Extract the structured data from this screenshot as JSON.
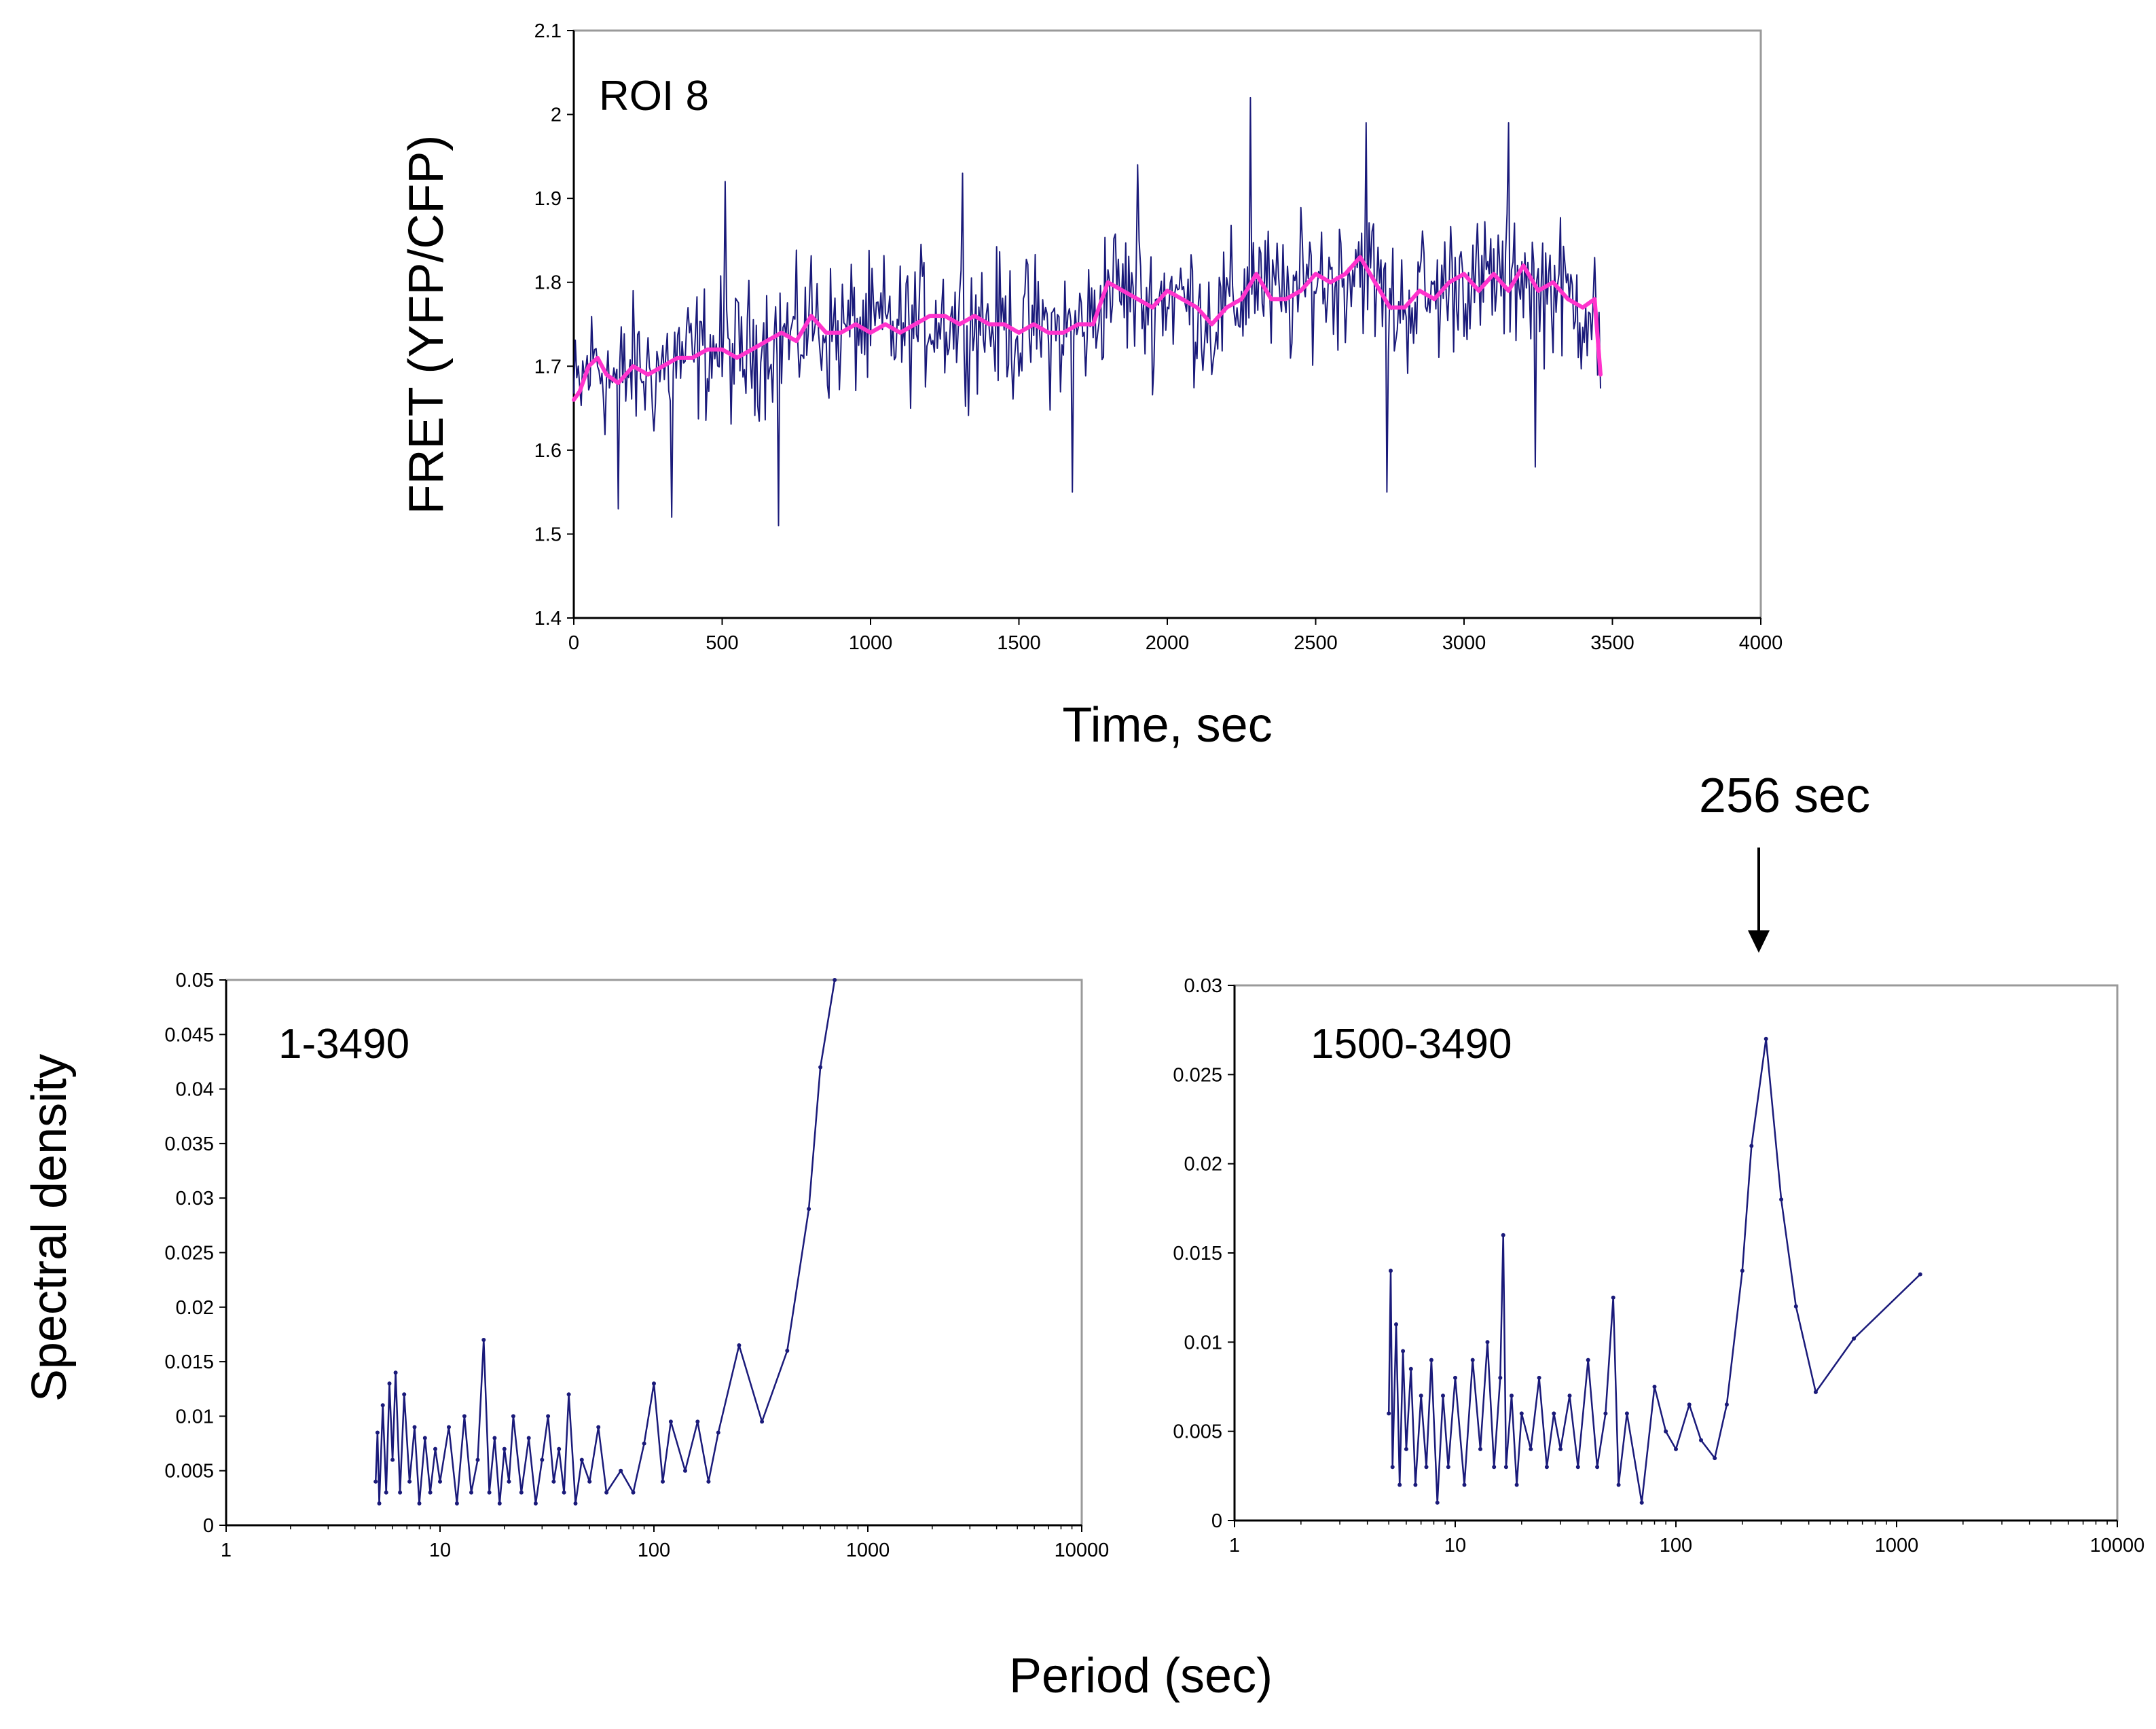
{
  "figure": {
    "shared_ylabel_spectra": "Spectral density",
    "shared_xlabel_spectra": "Period (sec)",
    "arrow_annotation": "256 sec"
  },
  "chart_data": [
    {
      "id": "fret",
      "type": "line",
      "panel_label": "ROI 8",
      "xlabel": "Time, sec",
      "ylabel": "FRET (YFP/CFP)",
      "xlim": [
        0,
        4000
      ],
      "ylim": [
        1.4,
        2.1
      ],
      "xticks": [
        0,
        500,
        1000,
        1500,
        2000,
        2500,
        3000,
        3500,
        4000
      ],
      "xtick_labels": [
        "0",
        "500",
        "1000",
        "1500",
        "2000",
        "2500",
        "3000",
        "3500",
        "4000"
      ],
      "yticks": [
        1.4,
        1.5,
        1.6,
        1.7,
        1.8,
        1.9,
        2.0,
        2.1
      ],
      "ytick_labels": [
        "1.4",
        "1.5",
        "1.6",
        "1.7",
        "1.8",
        "1.9",
        "2",
        "2.1"
      ],
      "grid": false,
      "colors": {
        "raw": "#1a1a7a",
        "smooth": "#ff33cc",
        "axis": "#000000",
        "frame": "#9a9a9a"
      },
      "series": [
        {
          "name": "raw (5 s samples)",
          "sample_interval": 5,
          "x_start": 0,
          "x_end": 3460,
          "noise_amplitude": 0.055,
          "spikes": [
            [
              150,
              1.53
            ],
            [
              330,
              1.52
            ],
            [
              510,
              1.92
            ],
            [
              690,
              1.51
            ],
            [
              1310,
              1.93
            ],
            [
              1680,
              1.55
            ],
            [
              1900,
              1.94
            ],
            [
              2280,
              2.02
            ],
            [
              2670,
              1.99
            ],
            [
              2740,
              1.55
            ],
            [
              3150,
              1.99
            ],
            [
              3240,
              1.58
            ]
          ]
        },
        {
          "name": "smoothed",
          "x": [
            0,
            20,
            50,
            80,
            110,
            150,
            200,
            250,
            300,
            350,
            400,
            450,
            500,
            550,
            600,
            650,
            700,
            750,
            800,
            850,
            900,
            950,
            1000,
            1050,
            1100,
            1150,
            1200,
            1250,
            1300,
            1350,
            1400,
            1450,
            1500,
            1550,
            1600,
            1650,
            1700,
            1750,
            1800,
            1850,
            1900,
            1950,
            2000,
            2050,
            2100,
            2150,
            2200,
            2250,
            2300,
            2350,
            2400,
            2450,
            2500,
            2550,
            2600,
            2650,
            2700,
            2750,
            2800,
            2850,
            2900,
            2950,
            3000,
            3050,
            3100,
            3150,
            3200,
            3250,
            3300,
            3350,
            3400,
            3440,
            3460
          ],
          "values": [
            1.66,
            1.67,
            1.7,
            1.71,
            1.69,
            1.68,
            1.7,
            1.69,
            1.7,
            1.71,
            1.71,
            1.72,
            1.72,
            1.71,
            1.72,
            1.73,
            1.74,
            1.73,
            1.76,
            1.74,
            1.74,
            1.75,
            1.74,
            1.75,
            1.74,
            1.75,
            1.76,
            1.76,
            1.75,
            1.76,
            1.75,
            1.75,
            1.74,
            1.75,
            1.74,
            1.74,
            1.75,
            1.75,
            1.8,
            1.79,
            1.78,
            1.77,
            1.79,
            1.78,
            1.77,
            1.75,
            1.77,
            1.78,
            1.81,
            1.78,
            1.78,
            1.79,
            1.81,
            1.8,
            1.81,
            1.83,
            1.8,
            1.77,
            1.77,
            1.79,
            1.78,
            1.8,
            1.81,
            1.79,
            1.81,
            1.79,
            1.82,
            1.79,
            1.8,
            1.78,
            1.77,
            1.78,
            1.69
          ]
        }
      ]
    },
    {
      "id": "spec1",
      "type": "line",
      "panel_label": "1-3490",
      "xscale": "log",
      "xlim": [
        1,
        10000
      ],
      "ylim": [
        0,
        0.05
      ],
      "xticks": [
        1,
        10,
        100,
        1000,
        10000
      ],
      "xtick_labels": [
        "1",
        "10",
        "100",
        "1000",
        "10000"
      ],
      "yticks": [
        0,
        0.005,
        0.01,
        0.015,
        0.02,
        0.025,
        0.03,
        0.035,
        0.04,
        0.045,
        0.05
      ],
      "ytick_labels": [
        "0",
        "0.005",
        "0.01",
        "0.015",
        "0.02",
        "0.025",
        "0.03",
        "0.035",
        "0.04",
        "0.045",
        "0.05"
      ],
      "grid": false,
      "colors": {
        "line": "#1a1a7a",
        "axis": "#000000",
        "frame": "#9a9a9a"
      },
      "series": [
        {
          "name": "spectrum",
          "x": [
            5,
            5.1,
            5.2,
            5.4,
            5.6,
            5.8,
            6.0,
            6.2,
            6.5,
            6.8,
            7.2,
            7.6,
            8.0,
            8.5,
            9.0,
            9.5,
            10,
            11,
            12,
            13,
            14,
            15,
            16,
            17,
            18,
            19,
            20,
            21,
            22,
            24,
            26,
            28,
            30,
            32,
            34,
            36,
            38,
            40,
            43,
            46,
            50,
            55,
            60,
            70,
            80,
            90,
            100,
            110,
            120,
            140,
            160,
            180,
            200,
            250,
            320,
            420,
            530,
            600,
            700
          ],
          "values": [
            0.004,
            0.0085,
            0.002,
            0.011,
            0.003,
            0.013,
            0.006,
            0.014,
            0.003,
            0.012,
            0.004,
            0.009,
            0.002,
            0.008,
            0.003,
            0.007,
            0.004,
            0.009,
            0.002,
            0.01,
            0.003,
            0.006,
            0.017,
            0.003,
            0.008,
            0.002,
            0.007,
            0.004,
            0.01,
            0.003,
            0.008,
            0.002,
            0.006,
            0.01,
            0.004,
            0.007,
            0.003,
            0.012,
            0.002,
            0.006,
            0.004,
            0.009,
            0.003,
            0.005,
            0.003,
            0.0075,
            0.013,
            0.004,
            0.0095,
            0.005,
            0.0095,
            0.004,
            0.0085,
            0.0165,
            0.0095,
            0.016,
            0.029,
            0.042,
            0.05
          ]
        }
      ]
    },
    {
      "id": "spec2",
      "type": "line",
      "panel_label": "1500-3490",
      "xscale": "log",
      "xlim": [
        1,
        10000
      ],
      "ylim": [
        0,
        0.03
      ],
      "xticks": [
        1,
        10,
        100,
        1000,
        10000
      ],
      "xtick_labels": [
        "1",
        "10",
        "100",
        "1000",
        "10000"
      ],
      "yticks": [
        0,
        0.005,
        0.01,
        0.015,
        0.02,
        0.025,
        0.03
      ],
      "ytick_labels": [
        "0",
        "0.005",
        "0.01",
        "0.015",
        "0.02",
        "0.025",
        "0.03"
      ],
      "grid": false,
      "colors": {
        "line": "#1a1a7a",
        "axis": "#000000",
        "frame": "#9a9a9a"
      },
      "series": [
        {
          "name": "spectrum",
          "x": [
            5,
            5.1,
            5.2,
            5.4,
            5.6,
            5.8,
            6.0,
            6.3,
            6.6,
            7.0,
            7.4,
            7.8,
            8.3,
            8.8,
            9.3,
            10,
            11,
            12,
            13,
            14,
            15,
            16,
            16.5,
            17,
            18,
            19,
            20,
            22,
            24,
            26,
            28,
            30,
            33,
            36,
            40,
            44,
            48,
            52,
            55,
            60,
            70,
            80,
            90,
            100,
            115,
            130,
            150,
            170,
            200,
            220,
            256,
            300,
            350,
            430,
            640,
            1280
          ],
          "values": [
            0.006,
            0.014,
            0.003,
            0.011,
            0.002,
            0.0095,
            0.004,
            0.0085,
            0.002,
            0.007,
            0.003,
            0.009,
            0.001,
            0.007,
            0.003,
            0.008,
            0.002,
            0.009,
            0.004,
            0.01,
            0.003,
            0.008,
            0.016,
            0.003,
            0.007,
            0.002,
            0.006,
            0.004,
            0.008,
            0.003,
            0.006,
            0.004,
            0.007,
            0.003,
            0.009,
            0.003,
            0.006,
            0.0125,
            0.002,
            0.006,
            0.001,
            0.0075,
            0.005,
            0.004,
            0.0065,
            0.0045,
            0.0035,
            0.0065,
            0.014,
            0.021,
            0.027,
            0.018,
            0.012,
            0.0072,
            0.0102,
            0.0138
          ]
        }
      ]
    }
  ]
}
